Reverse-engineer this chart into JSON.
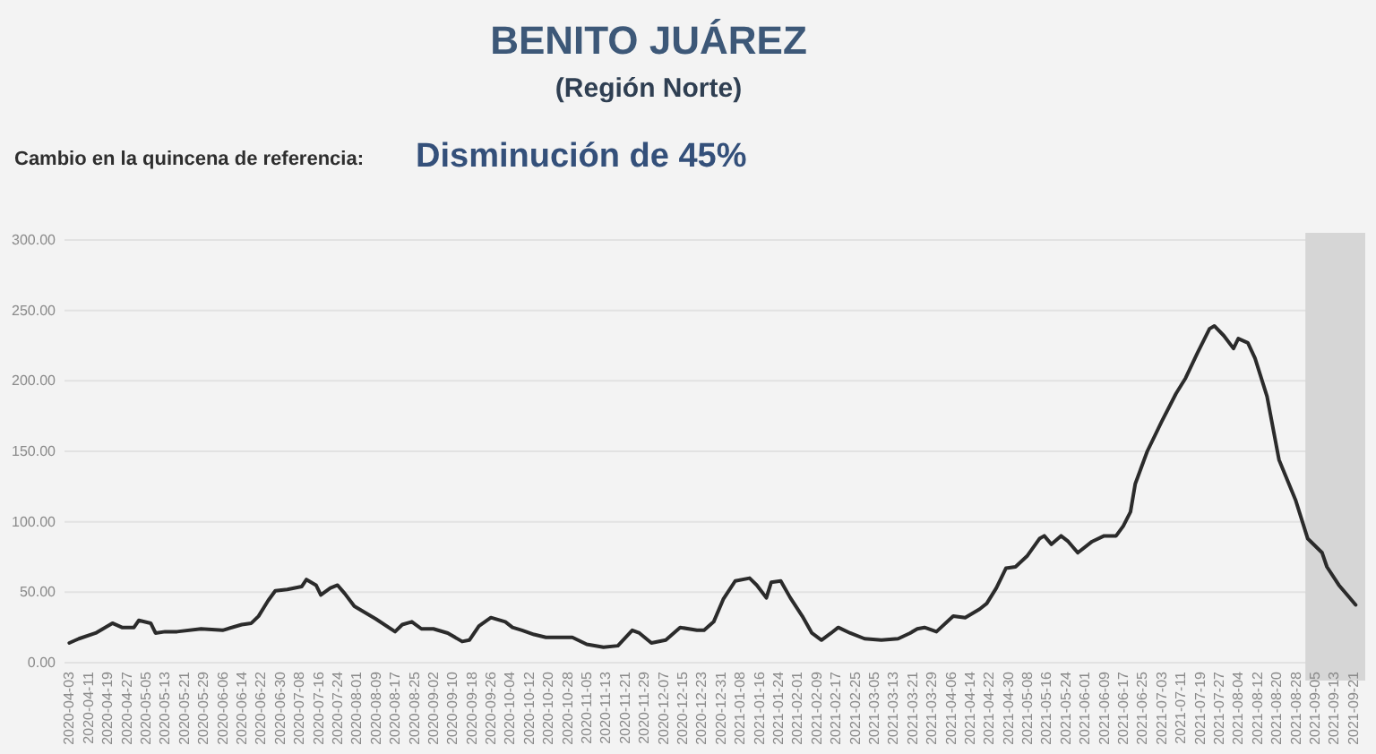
{
  "chart_data": {
    "type": "line",
    "title": "BENITO JUÁREZ",
    "subtitle": "(Región Norte)",
    "annotations": [
      "Cambio en la quincena de referencia:",
      "Disminución de 45%"
    ],
    "x": [
      "2020-04-03",
      "2020-04-07",
      "2020-04-14",
      "2020-04-21",
      "2020-04-25",
      "2020-04-30",
      "2020-05-02",
      "2020-05-07",
      "2020-05-09",
      "2020-05-13",
      "2020-05-18",
      "2020-05-28",
      "2020-06-06",
      "2020-06-14",
      "2020-06-18",
      "2020-06-21",
      "2020-06-25",
      "2020-06-28",
      "2020-07-03",
      "2020-07-09",
      "2020-07-11",
      "2020-07-15",
      "2020-07-17",
      "2020-07-21",
      "2020-07-24",
      "2020-07-27",
      "2020-07-31",
      "2020-08-09",
      "2020-08-17",
      "2020-08-20",
      "2020-08-24",
      "2020-08-28",
      "2020-09-02",
      "2020-09-08",
      "2020-09-14",
      "2020-09-17",
      "2020-09-21",
      "2020-09-26",
      "2020-10-02",
      "2020-10-05",
      "2020-10-09",
      "2020-10-14",
      "2020-10-19",
      "2020-10-24",
      "2020-10-30",
      "2020-11-05",
      "2020-11-12",
      "2020-11-18",
      "2020-11-24",
      "2020-11-27",
      "2020-12-02",
      "2020-12-08",
      "2020-12-14",
      "2020-12-21",
      "2020-12-24",
      "2020-12-28",
      "2021-01-01",
      "2021-01-06",
      "2021-01-12",
      "2021-01-15",
      "2021-01-19",
      "2021-01-21",
      "2021-01-25",
      "2021-01-29",
      "2021-02-03",
      "2021-02-07",
      "2021-02-11",
      "2021-02-15",
      "2021-02-18",
      "2021-02-23",
      "2021-03-01",
      "2021-03-08",
      "2021-03-15",
      "2021-03-20",
      "2021-03-23",
      "2021-03-26",
      "2021-03-31",
      "2021-04-07",
      "2021-04-12",
      "2021-04-18",
      "2021-04-21",
      "2021-04-25",
      "2021-04-29",
      "2021-05-03",
      "2021-05-08",
      "2021-05-13",
      "2021-05-15",
      "2021-05-18",
      "2021-05-22",
      "2021-05-25",
      "2021-05-29",
      "2021-06-04",
      "2021-06-09",
      "2021-06-14",
      "2021-06-17",
      "2021-06-20",
      "2021-06-22",
      "2021-06-27",
      "2021-07-03",
      "2021-07-09",
      "2021-07-13",
      "2021-07-18",
      "2021-07-23",
      "2021-07-25",
      "2021-07-29",
      "2021-08-02",
      "2021-08-04",
      "2021-08-08",
      "2021-08-11",
      "2021-08-16",
      "2021-08-21",
      "2021-08-28",
      "2021-09-02",
      "2021-09-08",
      "2021-09-10",
      "2021-09-15",
      "2021-09-19",
      "2021-09-22"
    ],
    "series": [
      {
        "color": "#2b2b2b",
        "values": [
          14,
          17,
          21,
          28,
          25,
          25,
          30,
          28,
          21,
          22,
          22,
          24,
          23,
          27,
          28,
          33,
          44,
          51,
          52,
          54,
          59,
          55,
          48,
          53,
          55,
          49,
          40,
          31,
          22,
          27,
          29,
          24,
          24,
          21,
          15,
          16,
          26,
          32,
          29,
          25,
          23,
          20,
          18,
          18,
          18,
          13,
          11,
          12,
          23,
          21,
          14,
          16,
          25,
          23,
          23,
          29,
          45,
          58,
          60,
          55,
          46,
          57,
          58,
          46,
          33,
          21,
          16,
          21,
          25,
          21,
          17,
          16,
          17,
          21,
          24,
          25,
          22,
          33,
          32,
          38,
          42,
          53,
          67,
          68,
          76,
          88,
          90,
          84,
          90,
          86,
          78,
          86,
          90,
          90,
          97,
          107,
          127,
          150,
          171,
          191,
          202,
          220,
          237,
          239,
          232,
          223,
          230,
          227,
          216,
          189,
          144,
          115,
          88,
          78,
          68,
          55,
          47,
          41
        ]
      }
    ],
    "xlim": [
      "2020-04-01",
      "2021-09-26"
    ],
    "xticks": [
      "2020-04-03",
      "2020-04-11",
      "2020-04-19",
      "2020-04-27",
      "2020-05-05",
      "2020-05-13",
      "2020-05-21",
      "2020-05-29",
      "2020-06-06",
      "2020-06-14",
      "2020-06-22",
      "2020-06-30",
      "2020-07-08",
      "2020-07-16",
      "2020-07-24",
      "2020-08-01",
      "2020-08-09",
      "2020-08-17",
      "2020-08-25",
      "2020-09-02",
      "2020-09-10",
      "2020-09-18",
      "2020-09-26",
      "2020-10-04",
      "2020-10-12",
      "2020-10-20",
      "2020-10-28",
      "2020-11-05",
      "2020-11-13",
      "2020-11-21",
      "2020-11-29",
      "2020-12-07",
      "2020-12-15",
      "2020-12-23",
      "2020-12-31",
      "2021-01-08",
      "2021-01-16",
      "2021-01-24",
      "2021-02-01",
      "2021-02-09",
      "2021-02-17",
      "2021-02-25",
      "2021-03-05",
      "2021-03-13",
      "2021-03-21",
      "2021-03-29",
      "2021-04-06",
      "2021-04-14",
      "2021-04-22",
      "2021-04-30",
      "2021-05-08",
      "2021-05-16",
      "2021-05-24",
      "2021-06-01",
      "2021-06-09",
      "2021-06-17",
      "2021-06-25",
      "2021-07-03",
      "2021-07-11",
      "2021-07-19",
      "2021-07-27",
      "2021-08-04",
      "2021-08-12",
      "2021-08-20",
      "2021-08-28",
      "2021-09-05",
      "2021-09-13",
      "2021-09-21"
    ],
    "ylim": [
      0,
      300
    ],
    "yticks": [
      {
        "value": 0,
        "label": "0.00"
      },
      {
        "value": 50,
        "label": "50.00"
      },
      {
        "value": 100,
        "label": "100.00"
      },
      {
        "value": 150,
        "label": "150.00"
      },
      {
        "value": 200,
        "label": "200.00"
      },
      {
        "value": 250,
        "label": "250.00"
      },
      {
        "value": 300,
        "label": "300.00"
      }
    ],
    "grid": "y",
    "bands": [
      {
        "axis": "x",
        "from": "2021-09-01",
        "to": "2021-09-26",
        "color": "#d6d6d6"
      }
    ]
  }
}
